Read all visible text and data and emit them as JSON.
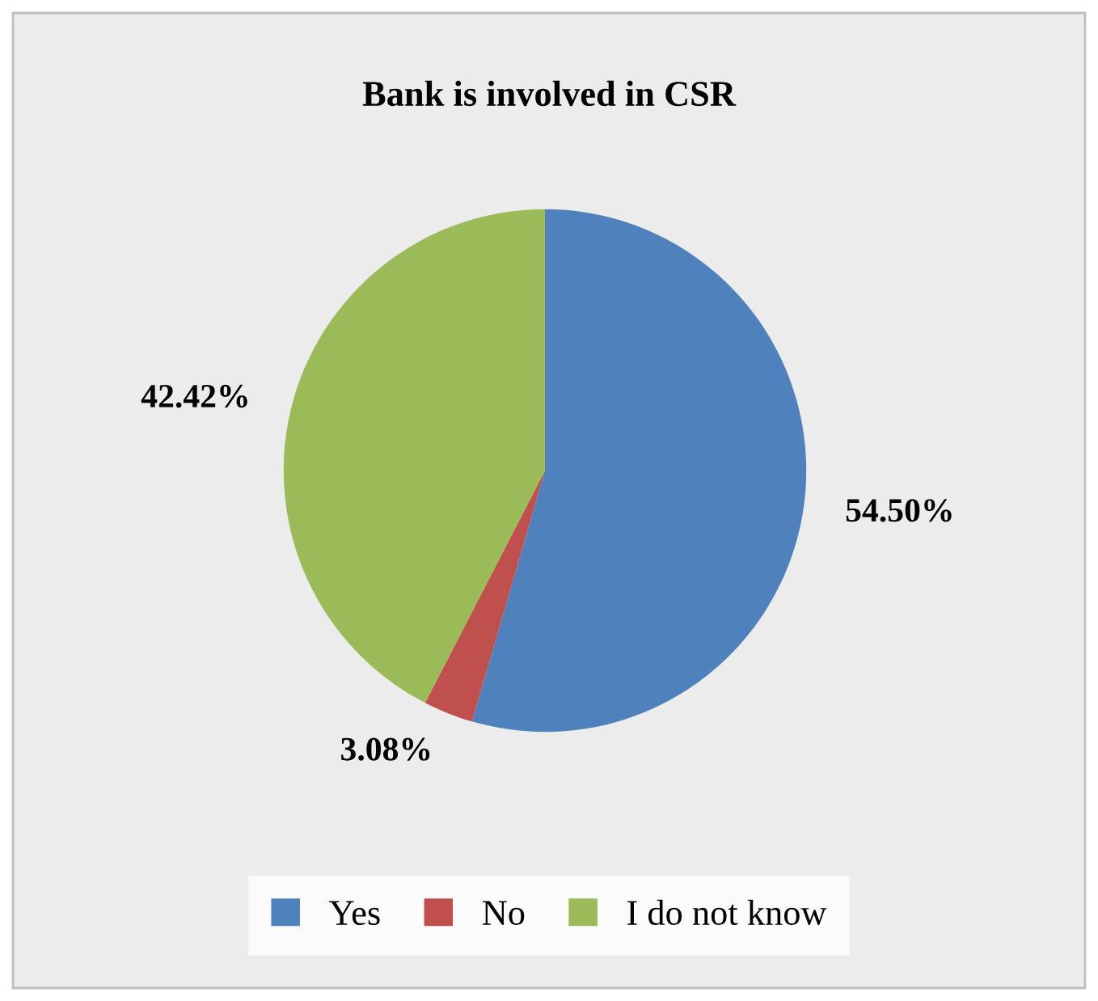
{
  "chart_data": {
    "type": "pie",
    "title": "Bank is involved in CSR",
    "categories": [
      "Yes",
      "No",
      "I do not know"
    ],
    "values": [
      54.5,
      3.08,
      42.42
    ],
    "value_labels": [
      "54.50%",
      "3.08%",
      "42.42%"
    ],
    "colors": [
      "#4f81bd",
      "#c0504d",
      "#9bbb59"
    ],
    "legend": "bottom"
  }
}
